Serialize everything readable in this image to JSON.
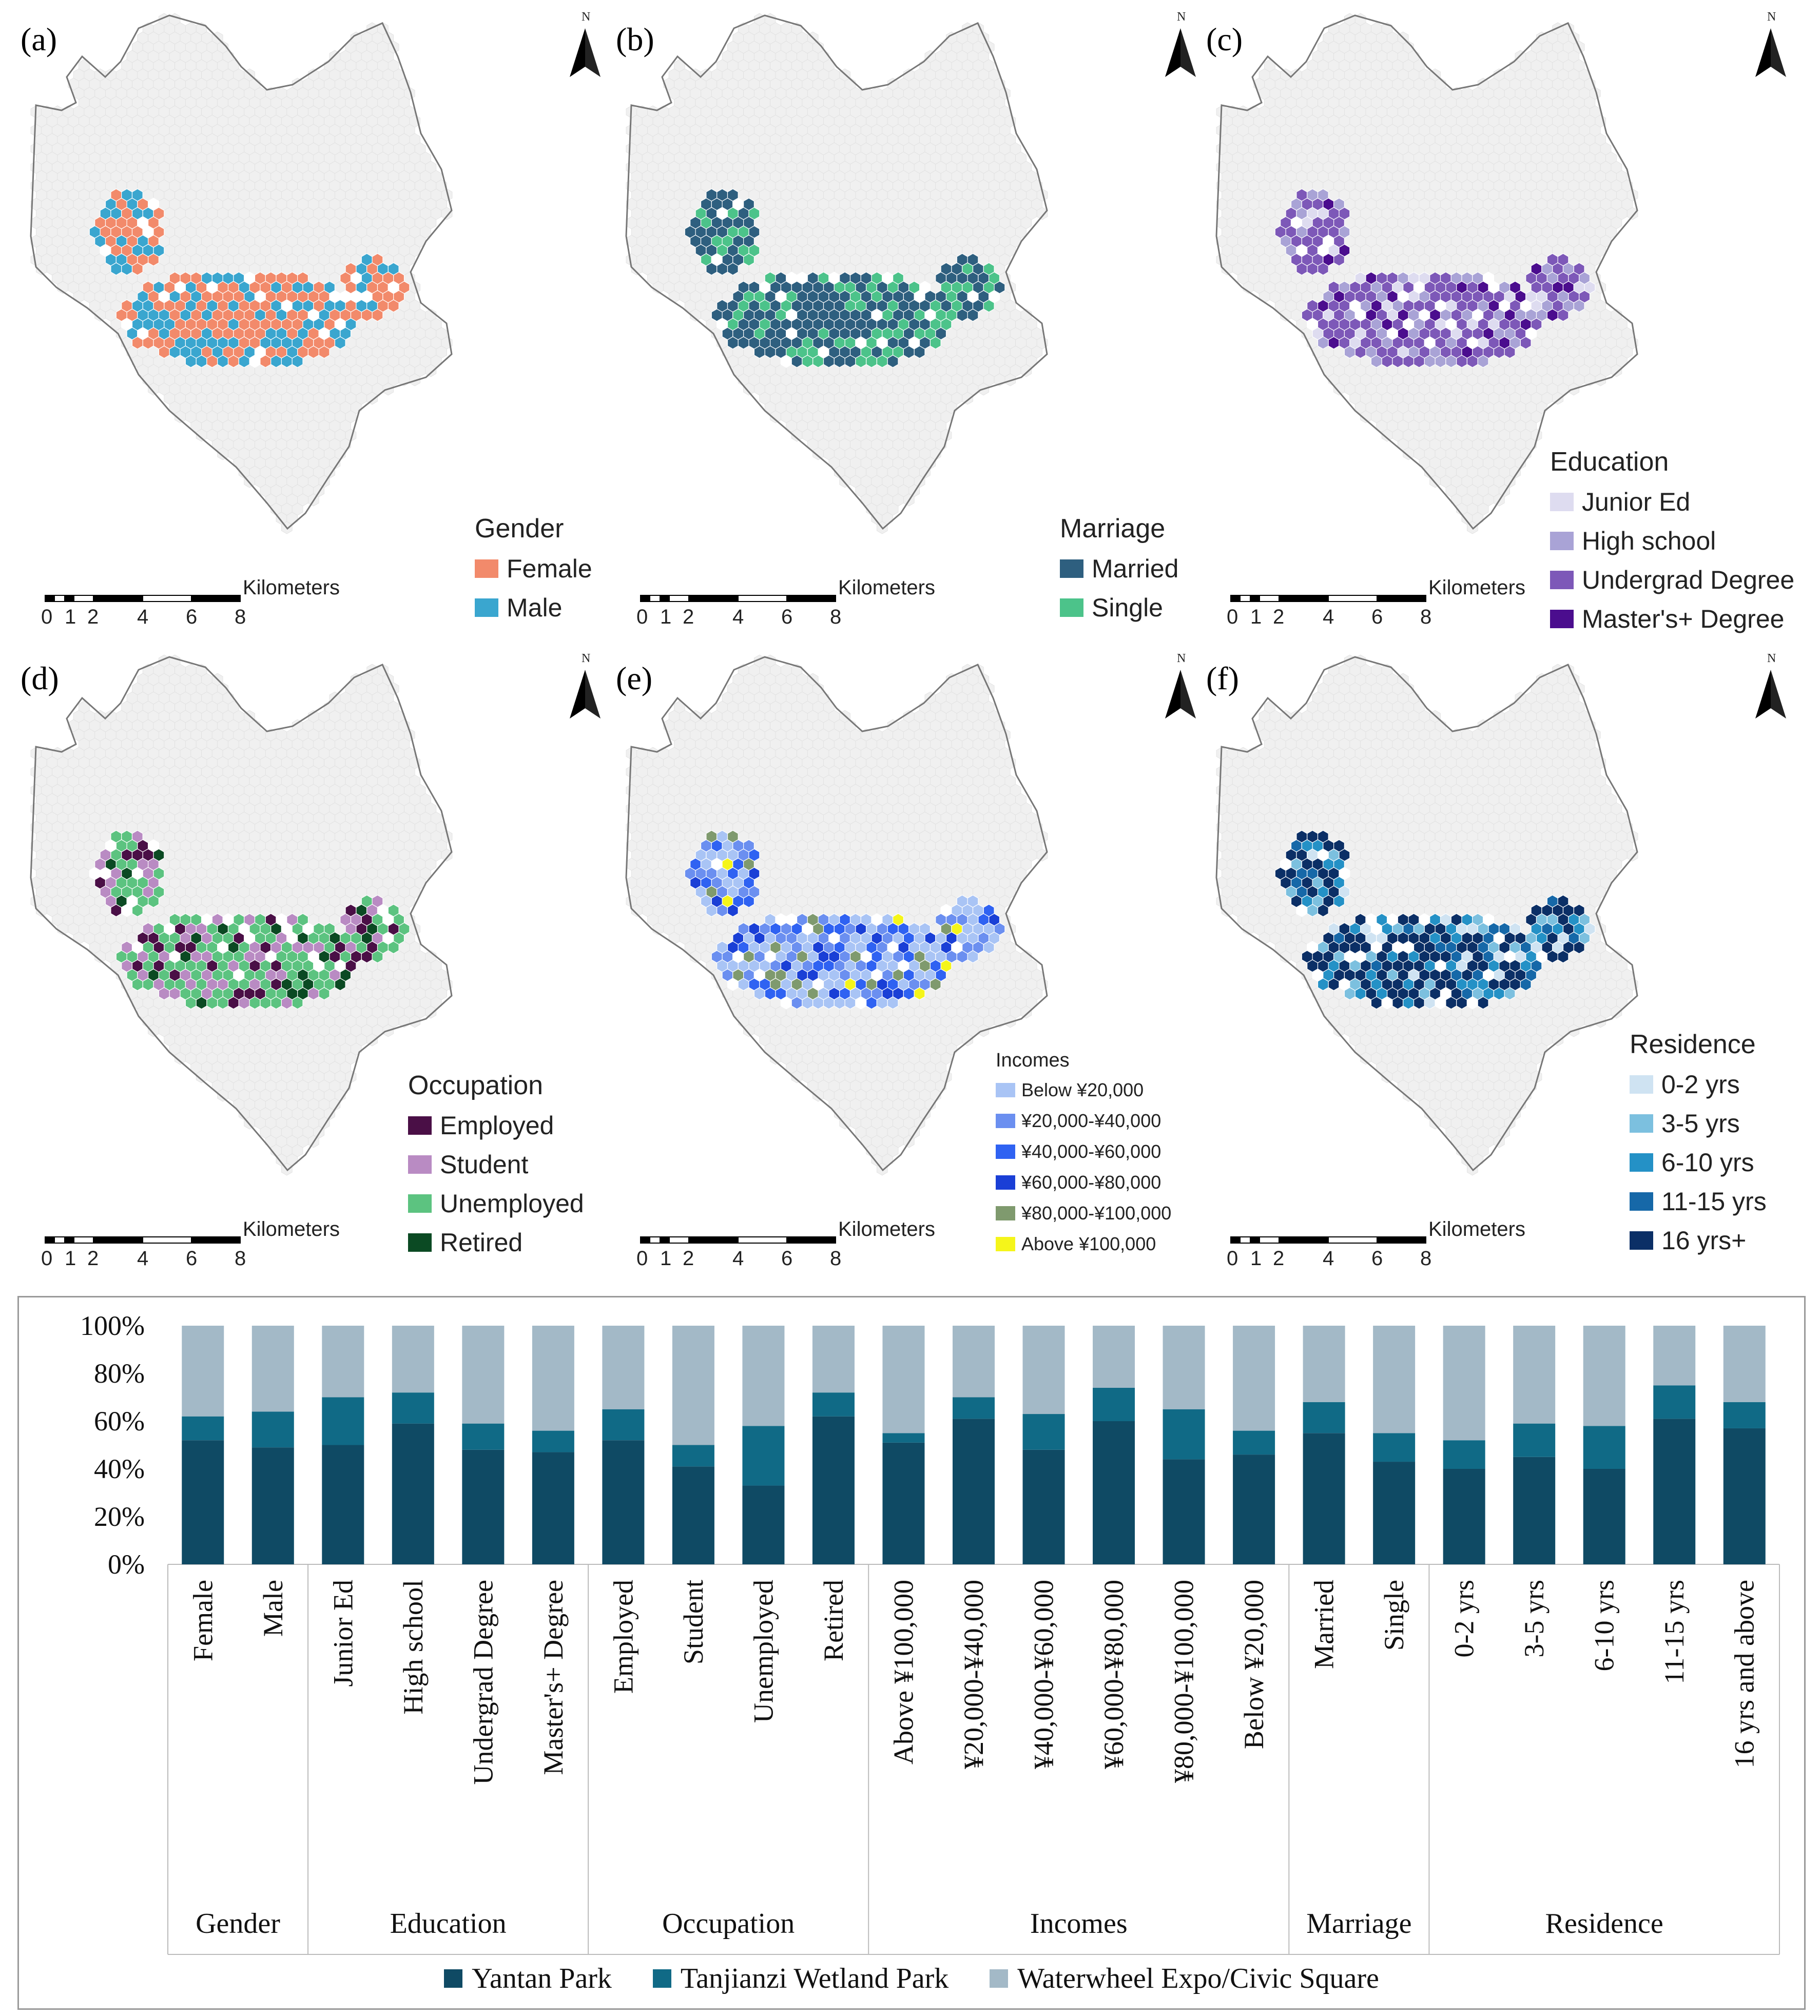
{
  "panels": [
    {
      "letter": "(a)",
      "legend_title": "Gender",
      "categories": [
        {
          "label": "Female",
          "color": "#f28a6b"
        },
        {
          "label": "Male",
          "color": "#3aa6cf"
        }
      ],
      "hex_seed": 3
    },
    {
      "letter": "(b)",
      "legend_title": "Marriage",
      "categories": [
        {
          "label": "Married",
          "color": "#2e5f7f"
        },
        {
          "label": "Single",
          "color": "#4cc38a"
        }
      ],
      "hex_seed": 7
    },
    {
      "letter": "(c)",
      "legend_title": "Education",
      "categories": [
        {
          "label": "Junior Ed",
          "color": "#dedcf0"
        },
        {
          "label": "High school",
          "color": "#a9a3d6"
        },
        {
          "label": "Undergrad Degree",
          "color": "#7d58b8"
        },
        {
          "label": "Master's+ Degree",
          "color": "#4b0d8e"
        }
      ],
      "hex_seed": 11
    },
    {
      "letter": "(d)",
      "legend_title": "Occupation",
      "categories": [
        {
          "label": "Employed",
          "color": "#4a0f46"
        },
        {
          "label": "Student",
          "color": "#b98bc3"
        },
        {
          "label": "Unemployed",
          "color": "#5cc380"
        },
        {
          "label": "Retired",
          "color": "#0b4a23"
        }
      ],
      "hex_seed": 13
    },
    {
      "letter": "(e)",
      "legend_title": "Incomes",
      "categories": [
        {
          "label": "Below ¥20,000",
          "color": "#a9c4f5"
        },
        {
          "label": "¥20,000-¥40,000",
          "color": "#6b8ff0"
        },
        {
          "label": "¥40,000-¥60,000",
          "color": "#2f62f2"
        },
        {
          "label": "¥60,000-¥80,000",
          "color": "#1a3fd6"
        },
        {
          "label": "¥80,000-¥100,000",
          "color": "#7f9a6e"
        },
        {
          "label": "Above ¥100,000",
          "color": "#f5f51a"
        }
      ],
      "hex_seed": 17
    },
    {
      "letter": "(f)",
      "legend_title": "Residence",
      "categories": [
        {
          "label": "0-2 yrs",
          "color": "#cfe3f2"
        },
        {
          "label": "3-5 yrs",
          "color": "#7cc0df"
        },
        {
          "label": "6-10 yrs",
          "color": "#2491c6"
        },
        {
          "label": "11-15 yrs",
          "color": "#1668a8"
        },
        {
          "label": "16 yrs+",
          "color": "#0b2f66"
        }
      ],
      "hex_seed": 19
    }
  ],
  "map_common": {
    "scale_label": "Kilometers",
    "scale_ticks": [
      "0",
      "1",
      "2",
      "4",
      "6",
      "8"
    ],
    "north_label": "N"
  },
  "chart_data": {
    "type": "bar",
    "stacked": true,
    "ylim": [
      0,
      100
    ],
    "yticks": [
      "0%",
      "20%",
      "40%",
      "60%",
      "80%",
      "100%"
    ],
    "categories": [
      "Female",
      "Male",
      "Junior Ed",
      "High school",
      "Undergrad Degree",
      "Master's+ Degree",
      "Employed",
      "Student",
      "Unemployed",
      "Retired",
      "Above ¥100,000",
      "¥20,000-¥40,000",
      "¥40,000-¥60,000",
      "¥60,000-¥80,000",
      "¥80,000-¥100,000",
      "Below ¥20,000",
      "Married",
      "Single",
      "0-2 yrs",
      "3-5 yrs",
      "6-10 yrs",
      "11-15 yrs",
      "16 yrs and above"
    ],
    "groups": [
      {
        "label": "Gender",
        "count": 2
      },
      {
        "label": "Education",
        "count": 4
      },
      {
        "label": "Occupation",
        "count": 4
      },
      {
        "label": "Incomes",
        "count": 6
      },
      {
        "label": "Marriage",
        "count": 2
      },
      {
        "label": "Residence",
        "count": 5
      }
    ],
    "series": [
      {
        "name": "Yantan Park",
        "color": "#0f4a64",
        "values": [
          52,
          49,
          50,
          59,
          48,
          47,
          52,
          41,
          33,
          62,
          51,
          61,
          48,
          60,
          44,
          46,
          55,
          43,
          40,
          45,
          40,
          61,
          57
        ]
      },
      {
        "name": "Tanjianzi Wetland Park",
        "color": "#106a86",
        "values": [
          10,
          15,
          20,
          13,
          11,
          9,
          13,
          9,
          25,
          10,
          4,
          9,
          15,
          14,
          21,
          10,
          13,
          12,
          12,
          14,
          18,
          14,
          11
        ]
      },
      {
        "name": "Waterwheel Expo/Civic Square",
        "color": "#a3b9c7",
        "values": [
          38,
          36,
          30,
          28,
          41,
          44,
          35,
          50,
          42,
          28,
          45,
          30,
          37,
          26,
          35,
          44,
          32,
          45,
          48,
          41,
          42,
          25,
          32
        ]
      }
    ]
  }
}
